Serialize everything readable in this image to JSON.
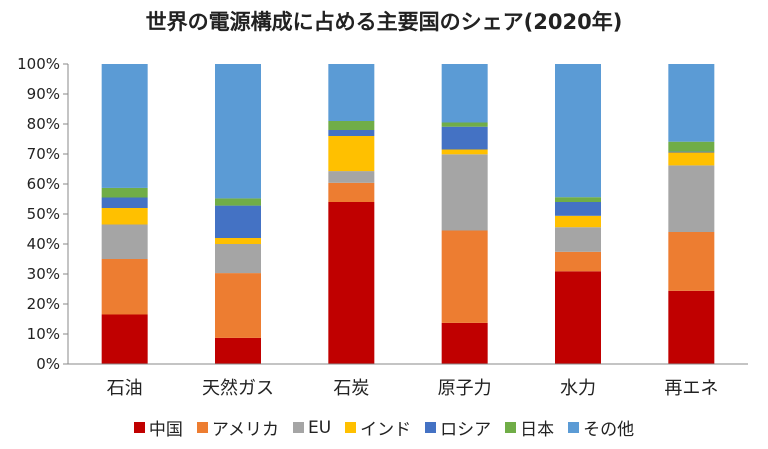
{
  "chart_data": {
    "type": "bar",
    "stacked": true,
    "title": "世界の電源構成に占める主要国のシェア(2020年)",
    "categories": [
      "石油",
      "天然ガス",
      "石炭",
      "原子力",
      "水力",
      "再エネ"
    ],
    "ylim": [
      0,
      100
    ],
    "yticks": [
      "0%",
      "10%",
      "20%",
      "30%",
      "40%",
      "50%",
      "60%",
      "70%",
      "80%",
      "90%",
      "100%"
    ],
    "grid": false,
    "legend_position": "bottom",
    "series": [
      {
        "name": "中国",
        "color": "#c00000",
        "values": [
          16.5,
          8.7,
          54.0,
          13.7,
          30.9,
          24.4
        ]
      },
      {
        "name": "アメリカ",
        "color": "#ed7d31",
        "values": [
          18.5,
          21.6,
          6.4,
          30.8,
          6.5,
          19.6
        ]
      },
      {
        "name": "EU",
        "color": "#a5a5a5",
        "values": [
          11.5,
          9.7,
          3.9,
          25.4,
          8.2,
          22.2
        ]
      },
      {
        "name": "インド",
        "color": "#ffc000",
        "values": [
          5.5,
          2.0,
          11.7,
          1.6,
          3.8,
          4.3
        ]
      },
      {
        "name": "ロシア",
        "color": "#4472c4",
        "values": [
          3.5,
          10.8,
          2.0,
          7.6,
          4.6,
          0.3
        ]
      },
      {
        "name": "日本",
        "color": "#70ad47",
        "values": [
          3.2,
          2.4,
          3.0,
          1.4,
          1.6,
          3.3
        ]
      },
      {
        "name": "その他",
        "color": "#5b9bd5",
        "values": [
          41.3,
          44.8,
          19.0,
          19.5,
          44.4,
          25.9
        ]
      }
    ]
  }
}
